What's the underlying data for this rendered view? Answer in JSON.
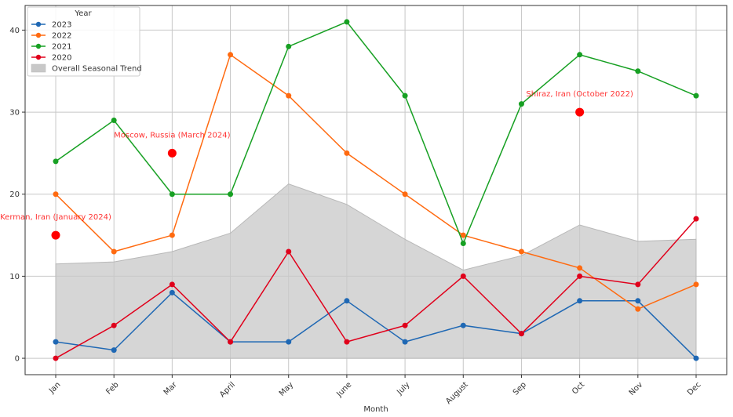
{
  "chart_data": {
    "type": "line",
    "xlabel": "Month",
    "ylabel": "",
    "categories": [
      "Jan",
      "Feb",
      "Mar",
      "April",
      "May",
      "June",
      "July",
      "August",
      "Sep",
      "Oct",
      "Nov",
      "Dec"
    ],
    "ylim": [
      -2,
      43
    ],
    "yticks": [
      0,
      10,
      20,
      30,
      40
    ],
    "grid": true,
    "legend": {
      "title": "Year",
      "placement": "top-left",
      "entries": [
        "2023",
        "2022",
        "2021",
        "2020",
        "Overall Seasonal Trend"
      ]
    },
    "series": [
      {
        "name": "2023",
        "color": "#1f68b4",
        "values": [
          2,
          1,
          8,
          2,
          2,
          7,
          2,
          4,
          3,
          7,
          7,
          0
        ]
      },
      {
        "name": "2022",
        "color": "#ff6a10",
        "values": [
          20,
          13,
          15,
          37,
          32,
          25,
          20,
          15,
          13,
          11,
          6,
          9
        ]
      },
      {
        "name": "2021",
        "color": "#17a023",
        "values": [
          24,
          29,
          20,
          20,
          38,
          41,
          32,
          14,
          31,
          37,
          35,
          32
        ]
      },
      {
        "name": "2020",
        "color": "#e0001b",
        "values": [
          0,
          4,
          9,
          2,
          13,
          2,
          4,
          10,
          3,
          10,
          9,
          17
        ]
      }
    ],
    "area": {
      "name": "Overall Seasonal Trend",
      "color": "#c8c8c8",
      "values": [
        11.5,
        11.75,
        13.0,
        15.25,
        21.25,
        18.75,
        14.5,
        10.75,
        12.5,
        16.25,
        14.25,
        14.5
      ]
    },
    "annotations": [
      {
        "text": "Kerman, Iran (January 2024)",
        "x": "Jan",
        "y": 15,
        "label_y": 17.3,
        "anchor": "middle",
        "color": "#ff0000"
      },
      {
        "text": "Moscow, Russia (March 2024)",
        "x": "Mar",
        "y": 25,
        "label_y": 27.3,
        "anchor": "middle",
        "color": "#ff0000"
      },
      {
        "text": "Shiraz, Iran (October 2022)",
        "x": "Oct",
        "y": 30,
        "label_y": 32.3,
        "anchor": "middle",
        "color": "#ff0000"
      }
    ]
  }
}
